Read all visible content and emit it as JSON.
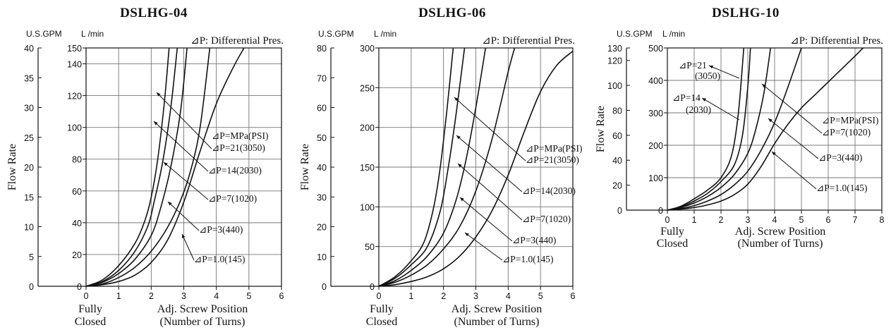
{
  "charts": [
    {
      "title": "DSLHG-04",
      "gpm_unit": "U.S.GPM",
      "lmin_unit": "L /min",
      "dp_note": "⊿P: Differential Pres.",
      "ylabel": "Flow Rate",
      "x_closed_label": [
        "Fully",
        "Closed"
      ],
      "xlabel": [
        "Adj. Screw Position",
        "(Number of Turns)"
      ],
      "x_ticks": [
        "0",
        "1",
        "2",
        "3",
        "4",
        "5",
        "6"
      ],
      "gpm_ticks": [
        "0",
        "5",
        "10",
        "15",
        "20",
        "25",
        "30",
        "35",
        "40"
      ],
      "lmin_ticks": [
        "0",
        "20",
        "40",
        "60",
        "80",
        "100",
        "120",
        "140",
        "150"
      ],
      "curve_labels": [
        "⊿P=MPa(PSI)",
        "⊿P=21(3050)",
        "⊿P=14(2030)",
        "⊿P=7(1020)",
        "⊿P=3(440)",
        "⊿P=1.0(145)"
      ]
    },
    {
      "title": "DSLHG-06",
      "gpm_unit": "U.S.GPM",
      "lmin_unit": "L /min",
      "dp_note": "⊿P: Differential Pres.",
      "ylabel": "Flow Rate",
      "x_closed_label": [
        "Fully",
        "Closed"
      ],
      "xlabel": [
        "Adj. Screw Position",
        "(Number of Turns)"
      ],
      "x_ticks": [
        "0",
        "1",
        "2",
        "3",
        "4",
        "5",
        "6"
      ],
      "gpm_ticks": [
        "0",
        "10",
        "20",
        "30",
        "40",
        "50",
        "60",
        "70",
        "80"
      ],
      "lmin_ticks": [
        "0",
        "50",
        "100",
        "150",
        "200",
        "250",
        "300"
      ],
      "curve_labels": [
        "⊿P=MPa(PSI)",
        "⊿P=21(3050)",
        "⊿P=14(2030)",
        "⊿P=7(1020)",
        "⊿P=3(440)",
        "⊿P=1.0(145)"
      ]
    },
    {
      "title": "DSLHG-10",
      "gpm_unit": "U.S.GPM",
      "lmin_unit": "L /min",
      "dp_note": "⊿P: Differential Pres.",
      "ylabel": "Flow Rate",
      "x_closed_label": [
        "Fully",
        "Closed"
      ],
      "xlabel": [
        "Adj. Screw Position",
        "(Number of Turns)"
      ],
      "x_ticks": [
        "0",
        "1",
        "2",
        "3",
        "4",
        "5",
        "6",
        "7",
        "8"
      ],
      "gpm_ticks": [
        "0",
        "20",
        "40",
        "60",
        "80",
        "100",
        "120",
        "130"
      ],
      "lmin_ticks": [
        "0",
        "100",
        "200",
        "300",
        "400",
        "500"
      ],
      "curve_labels": [
        "⊿P=21",
        "(3050)",
        "⊿P=14",
        "(2030)",
        "⊿P=MPa(PSI)",
        "⊿P=7(1020)",
        "⊿P=3(440)",
        "⊿P=1.0(145)"
      ]
    }
  ],
  "chart_data": [
    {
      "type": "line",
      "title": "DSLHG-04",
      "xlabel": "Adj. Screw Position (Number of Turns)",
      "ylabel": "Flow Rate",
      "xlim": [
        0,
        6
      ],
      "ylim_lmin": [
        0,
        150
      ],
      "ylim_gpm": [
        0,
        40
      ],
      "grid": true,
      "series": [
        {
          "name": "⊿P=21(3050)",
          "x": [
            0,
            0.5,
            1.0,
            1.5,
            1.8,
            2.0,
            2.2,
            2.4,
            2.55
          ],
          "y": [
            0,
            4,
            13,
            27,
            41,
            56,
            80,
            115,
            150
          ]
        },
        {
          "name": "⊿P=14(2030)",
          "x": [
            0,
            0.5,
            1.0,
            1.5,
            1.9,
            2.1,
            2.35,
            2.6,
            2.8
          ],
          "y": [
            0,
            3,
            10,
            22,
            38,
            54,
            78,
            112,
            150
          ]
        },
        {
          "name": "⊿P=7(1020)",
          "x": [
            0,
            0.5,
            1.0,
            1.5,
            2.0,
            2.3,
            2.6,
            2.9,
            3.1
          ],
          "y": [
            0,
            2.5,
            8,
            17,
            32,
            50,
            75,
            110,
            150
          ]
        },
        {
          "name": "⊿P=3(440)",
          "x": [
            0,
            0.5,
            1.0,
            1.5,
            2.0,
            2.5,
            2.9,
            3.2,
            3.5,
            3.8
          ],
          "y": [
            0,
            1.5,
            5.5,
            12,
            22,
            37,
            54,
            72,
            100,
            150
          ]
        },
        {
          "name": "⊿P=1.0(145)",
          "x": [
            0,
            0.5,
            1.0,
            1.5,
            2.0,
            2.5,
            3.0,
            3.5,
            4.0,
            4.5,
            4.85
          ],
          "y": [
            0,
            1,
            3,
            7,
            15,
            29,
            53,
            85,
            115,
            137,
            150
          ]
        }
      ]
    },
    {
      "type": "line",
      "title": "DSLHG-06",
      "xlabel": "Adj. Screw Position (Number of Turns)",
      "ylabel": "Flow Rate",
      "xlim": [
        0,
        6
      ],
      "ylim_lmin": [
        0,
        300
      ],
      "ylim_gpm": [
        0,
        80
      ],
      "grid": true,
      "series": [
        {
          "name": "⊿P=21(3050)",
          "x": [
            0,
            0.5,
            1.0,
            1.4,
            1.7,
            1.9,
            2.1,
            2.3
          ],
          "y": [
            0,
            12,
            32,
            56,
            100,
            150,
            220,
            300
          ]
        },
        {
          "name": "⊿P=14(2030)",
          "x": [
            0,
            0.5,
            1.0,
            1.5,
            1.9,
            2.15,
            2.4,
            2.65
          ],
          "y": [
            0,
            10,
            27,
            50,
            95,
            150,
            220,
            300
          ]
        },
        {
          "name": "⊿P=7(1020)",
          "x": [
            0,
            0.5,
            1.0,
            1.5,
            2.0,
            2.4,
            2.7,
            3.0,
            3.3
          ],
          "y": [
            0,
            7,
            20,
            38,
            67,
            110,
            160,
            225,
            300
          ]
        },
        {
          "name": "⊿P=3(440)",
          "x": [
            0,
            0.5,
            1.0,
            1.5,
            2.0,
            2.5,
            3.0,
            3.5,
            4.0,
            4.2
          ],
          "y": [
            0,
            5,
            14,
            27,
            47,
            75,
            120,
            185,
            270,
            300
          ]
        },
        {
          "name": "⊿P=1.0(145)",
          "x": [
            0,
            0.5,
            1.0,
            1.5,
            2.0,
            2.5,
            3.0,
            3.5,
            4.0,
            4.5,
            5.0,
            5.5,
            6.0
          ],
          "y": [
            0,
            2,
            6,
            12,
            22,
            38,
            62,
            95,
            140,
            195,
            245,
            278,
            296
          ]
        }
      ]
    },
    {
      "type": "line",
      "title": "DSLHG-10",
      "xlabel": "Adj. Screw Position (Number of Turns)",
      "ylabel": "Flow Rate",
      "xlim": [
        0,
        8
      ],
      "ylim_lmin": [
        0,
        500
      ],
      "ylim_gpm": [
        0,
        130
      ],
      "grid": true,
      "series": [
        {
          "name": "⊿P=21(3050)",
          "x": [
            0,
            0.5,
            1.0,
            1.5,
            2.0,
            2.4,
            2.65,
            2.85
          ],
          "y": [
            0,
            12,
            35,
            62,
            100,
            170,
            300,
            500
          ]
        },
        {
          "name": "⊿P=14(2030)",
          "x": [
            0,
            0.5,
            1.0,
            1.5,
            2.0,
            2.5,
            2.8,
            3.0,
            3.1
          ],
          "y": [
            0,
            10,
            28,
            52,
            88,
            140,
            230,
            380,
            500
          ]
        },
        {
          "name": "⊿P=7(1020)",
          "x": [
            0,
            0.5,
            1.0,
            1.5,
            2.0,
            2.5,
            3.0,
            3.3,
            3.6,
            3.85
          ],
          "y": [
            0,
            8,
            22,
            42,
            70,
            110,
            175,
            250,
            360,
            500
          ]
        },
        {
          "name": "⊿P=3(440)",
          "x": [
            0,
            0.5,
            1.0,
            1.5,
            2.0,
            2.5,
            3.0,
            3.5,
            4.0,
            4.5,
            5.0
          ],
          "y": [
            0,
            5,
            14,
            28,
            48,
            78,
            120,
            185,
            270,
            380,
            500
          ]
        },
        {
          "name": "⊿P=1.0(145)",
          "x": [
            0,
            0.5,
            1.0,
            1.5,
            2.0,
            2.5,
            3.0,
            3.5,
            4.0,
            4.5,
            5.0,
            5.5,
            6.0,
            6.5,
            7.0,
            7.3
          ],
          "y": [
            0,
            3,
            8,
            16,
            28,
            48,
            80,
            135,
            205,
            265,
            315,
            355,
            395,
            435,
            475,
            500
          ]
        }
      ]
    }
  ]
}
